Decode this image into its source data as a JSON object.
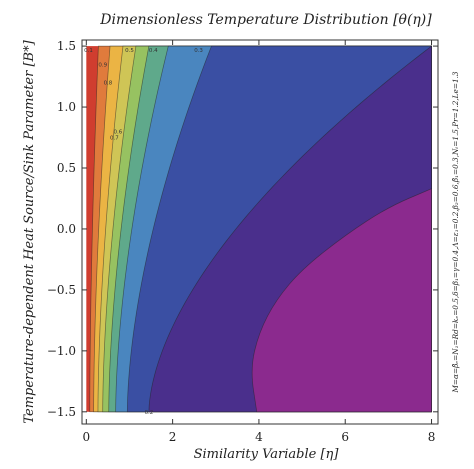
{
  "chart_data": {
    "type": "contour",
    "title": "Dimensionless Temperature Distribution [θ(η)]",
    "xlabel": "Similarity Variable [η]",
    "ylabel": "Temperature-dependent Heat Source/Sink Parameter [B*]",
    "side_note": "M=α=β̃ₑ=N₁=Rd=kₑ=0.5,δ=β₁=γ=0.4,Λ=ε₁=0.2,β₂=0.6,β̃₁=0.3,Nₜ=1.5,Pr=1.2,Le=1.3",
    "xlim": [
      -0.1,
      8.15
    ],
    "ylim": [
      -1.6,
      1.55
    ],
    "x_ticks": [
      0,
      2,
      4,
      6,
      8
    ],
    "x_tick_labels": [
      "0",
      "2",
      "4",
      "6",
      "8"
    ],
    "y_ticks": [
      -1.5,
      -1.0,
      -0.5,
      0.0,
      0.5,
      1.0,
      1.5
    ],
    "y_tick_labels": [
      "−1.5",
      "−1.0",
      "−0.5",
      "0.0",
      "0.5",
      "1.0",
      "1.5"
    ],
    "plot_domain": {
      "x": [
        0,
        8
      ],
      "y": [
        -1.5,
        1.5
      ]
    },
    "contour_levels": [
      {
        "level": 0.9,
        "x_at_top": 0.28,
        "x_at_bottom": 0.08,
        "fill": "#cb4a37"
      },
      {
        "level": 0.8,
        "x_at_top": 0.55,
        "x_at_bottom": 0.17,
        "fill": "#e07b3c"
      },
      {
        "level": 0.7,
        "x_at_top": 0.85,
        "x_at_bottom": 0.27,
        "fill": "#ebb444"
      },
      {
        "level": 0.6,
        "x_at_top": 1.15,
        "x_at_bottom": 0.38,
        "fill": "#cfc556"
      },
      {
        "level": 0.5,
        "x_at_top": 1.45,
        "x_at_bottom": 0.52,
        "fill": "#97c261"
      },
      {
        "level": 0.4,
        "x_at_top": 1.9,
        "x_at_bottom": 0.68,
        "fill": "#5fa98b"
      },
      {
        "level": 0.3,
        "x_at_top": 2.9,
        "x_at_bottom": 0.95,
        "fill": "#4a86bf"
      },
      {
        "level": 0.2,
        "x_at_top": 8.0,
        "x_at_bottom": 1.45,
        "fill": "#3a4fa3"
      }
    ],
    "background_fill": "#d03d2f",
    "low_region_fill": "#4a2f8c",
    "inner_region": {
      "level": 0.0,
      "fill": "#8b2a8e"
    },
    "contour_label_texts": [
      "0.1",
      "0.9",
      "0.8",
      "0.7",
      "0.6",
      "0.5",
      "0.4",
      "0.3",
      "0.2"
    ]
  }
}
